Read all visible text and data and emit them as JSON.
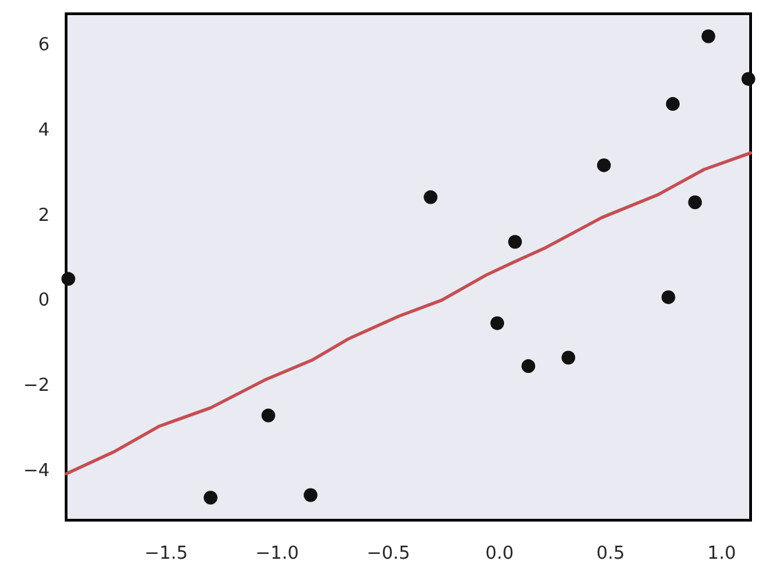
{
  "chart_data": {
    "type": "scatter",
    "xlim": [
      -1.95,
      1.13
    ],
    "ylim": [
      -5.15,
      6.75
    ],
    "xticks": [
      {
        "value": -1.5,
        "label": "−1.5"
      },
      {
        "value": -1,
        "label": "−1.0"
      },
      {
        "value": -0.5,
        "label": "−0.5"
      },
      {
        "value": 0,
        "label": "0.0"
      },
      {
        "value": 0.5,
        "label": "0.5"
      },
      {
        "value": 1,
        "label": "1.0"
      }
    ],
    "yticks": [
      {
        "value": -4,
        "label": "−4"
      },
      {
        "value": -2,
        "label": "−2"
      },
      0,
      2,
      4,
      6
    ],
    "grid": false,
    "series": [
      {
        "color": "#111111",
        "marker": "circle",
        "x": [
          -1.94,
          -1.3,
          -1.04,
          -0.85,
          -0.31,
          -0.01,
          0.07,
          0.13,
          0.31,
          0.47,
          0.76,
          0.78,
          0.88,
          0.94,
          1.12
        ],
        "values": [
          0.52,
          -4.62,
          -2.69,
          -4.56,
          2.44,
          -0.52,
          1.39,
          -1.53,
          -1.33,
          3.19,
          0.09,
          4.63,
          2.32,
          6.22,
          5.22
        ]
      },
      {
        "type": "line",
        "color": "#c44e52",
        "marker": "none",
        "line_style": "solid",
        "x": [
          -1.95,
          -1.73,
          -1.53,
          -1.3,
          -1.05,
          -0.84,
          -0.68,
          -0.45,
          -0.26,
          -0.06,
          0.05,
          0.21,
          0.46,
          0.71,
          0.92,
          1.13
        ],
        "values": [
          -4.06,
          -3.53,
          -2.94,
          -2.51,
          -1.84,
          -1.38,
          -0.89,
          -0.35,
          0.02,
          0.61,
          0.88,
          1.26,
          1.96,
          2.49,
          3.09,
          3.48
        ]
      }
    ]
  }
}
